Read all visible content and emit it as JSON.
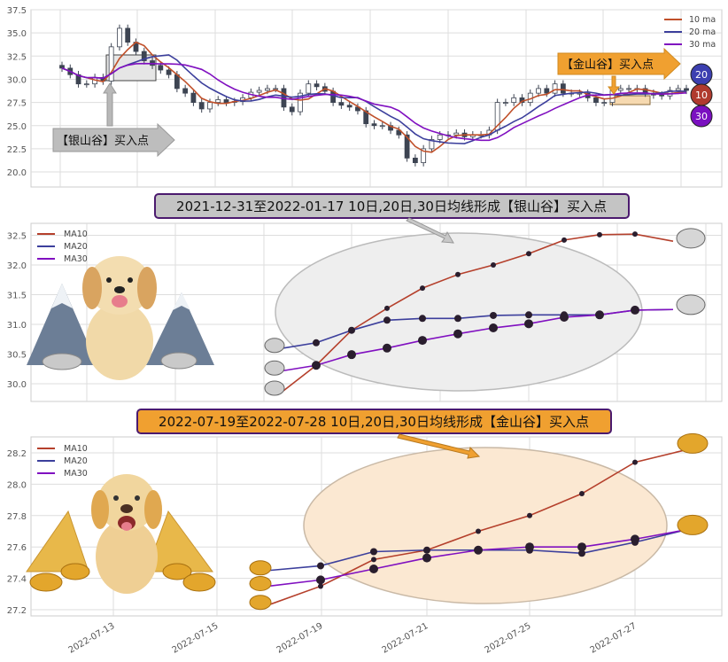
{
  "colors": {
    "ma10": "#b5402c",
    "ma20": "#3c3f9c",
    "ma30": "#8010c0",
    "silver": "#bdbdbd",
    "gold": "#f0a030",
    "candle": "#3d4452",
    "title_border": "#4b1a6e"
  },
  "chart_data": [
    {
      "type": "candlestick",
      "title": "",
      "ylim": [
        18.5,
        37.5
      ],
      "yticks": [
        "20.0",
        "22.5",
        "25.0",
        "27.5",
        "30.0",
        "32.5",
        "35.0",
        "37.5"
      ],
      "grid": true,
      "legend": {
        "placement": "top-right",
        "entries": [
          "10 ma",
          "20 ma",
          "30 ma"
        ]
      },
      "closes_approx": [
        31.2,
        30.5,
        29.5,
        29.5,
        30.2,
        29.8,
        33.5,
        35.5,
        34,
        33,
        32,
        31.5,
        31,
        30.5,
        29,
        28.5,
        27.5,
        26.8,
        27.5,
        27.8,
        27.5,
        27.6,
        28,
        28.6,
        28.8,
        29,
        29,
        27,
        26.5,
        28.5,
        29.5,
        29.2,
        28.7,
        27.5,
        27.2,
        27,
        26.6,
        25.2,
        25,
        25,
        24.5,
        24,
        21.5,
        21,
        22.5,
        23.5,
        24,
        24,
        24.2,
        23.8,
        24,
        24,
        24.5,
        27.5,
        27.5,
        28,
        27.5,
        28.5,
        29,
        28.5,
        29.5,
        28.5,
        28.5,
        28.5,
        28,
        27.5,
        27.5,
        28.8,
        29,
        29,
        29,
        28.5,
        28.3,
        28.2,
        28.8,
        29,
        28.8
      ],
      "annotations": {
        "silver_label": "【银山谷】买入点",
        "gold_label": "【金山谷】买入点",
        "badges": [
          "20",
          "10",
          "30"
        ]
      }
    },
    {
      "type": "line",
      "title": "2021-12-31至2022-01-17 10日,20日,30日均线形成【银山谷】买入点",
      "ylim": [
        29.7,
        32.7
      ],
      "yticks": [
        "30.0",
        "30.5",
        "31.0",
        "31.5",
        "32.0",
        "32.5"
      ],
      "grid": true,
      "legend": {
        "placement": "top-left"
      },
      "series": [
        {
          "name": "MA10",
          "values": [
            29.88,
            30.31,
            30.9,
            31.27,
            31.61,
            31.84,
            32.0,
            32.19,
            32.42,
            32.51,
            32.52,
            32.4
          ]
        },
        {
          "name": "MA20",
          "values": [
            30.6,
            30.69,
            30.9,
            31.07,
            31.1,
            31.1,
            31.15,
            31.16,
            31.16,
            31.16,
            31.24,
            31.25
          ]
        },
        {
          "name": "MA30",
          "values": [
            30.22,
            30.31,
            30.49,
            30.6,
            30.73,
            30.84,
            30.94,
            31.01,
            31.12,
            31.16,
            31.24,
            31.25
          ]
        }
      ]
    },
    {
      "type": "line",
      "title": "2022-07-19至2022-07-28 10日,20日,30日均线形成【金山谷】买入点",
      "ylim": [
        27.17,
        28.28
      ],
      "yticks": [
        "27.2",
        "27.4",
        "27.6",
        "27.8",
        "28.0",
        "28.2"
      ],
      "xticks": [
        "2022-07-13",
        "2022-07-15",
        "2022-07-19",
        "2022-07-21",
        "2022-07-25",
        "2022-07-27"
      ],
      "x": [
        "2022-07-18",
        "2022-07-19",
        "2022-07-20",
        "2022-07-21",
        "2022-07-22",
        "2022-07-25",
        "2022-07-26",
        "2022-07-27",
        "2022-07-28"
      ],
      "grid": true,
      "legend": {
        "placement": "top-left"
      },
      "series": [
        {
          "name": "MA10",
          "values": [
            27.23,
            27.35,
            27.52,
            27.58,
            27.7,
            27.8,
            27.94,
            28.14,
            28.22
          ]
        },
        {
          "name": "MA20",
          "values": [
            27.45,
            27.48,
            27.57,
            27.58,
            27.58,
            27.58,
            27.56,
            27.63,
            27.71
          ]
        },
        {
          "name": "MA30",
          "values": [
            27.35,
            27.39,
            27.46,
            27.53,
            27.58,
            27.6,
            27.6,
            27.65,
            27.71
          ]
        }
      ]
    }
  ]
}
